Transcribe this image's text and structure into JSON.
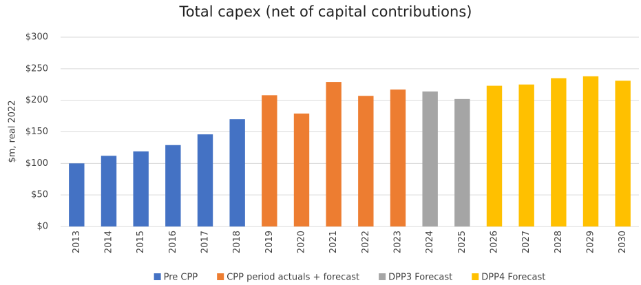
{
  "chart_data": {
    "type": "bar",
    "title": "Total capex (net of capital contributions)",
    "y_label": "$m, real 2022",
    "categories": [
      "2013",
      "2014",
      "2015",
      "2016",
      "2017",
      "2018",
      "2019",
      "2020",
      "2021",
      "2022",
      "2023",
      "2024",
      "2025",
      "2026",
      "2027",
      "2028",
      "2029",
      "2030"
    ],
    "series": [
      {
        "name": "Pre CPP",
        "color": "#4472c4",
        "values": [
          100,
          112,
          119,
          129,
          146,
          170,
          null,
          null,
          null,
          null,
          null,
          null,
          null,
          null,
          null,
          null,
          null,
          null
        ]
      },
      {
        "name": "CPP period actuals + forecast",
        "color": "#ed7d31",
        "values": [
          null,
          null,
          null,
          null,
          null,
          null,
          208,
          179,
          229,
          207,
          217,
          null,
          null,
          null,
          null,
          null,
          null,
          null
        ]
      },
      {
        "name": "DPP3 Forecast",
        "color": "#a5a5a5",
        "values": [
          null,
          null,
          null,
          null,
          null,
          null,
          null,
          null,
          null,
          null,
          null,
          214,
          202,
          null,
          null,
          null,
          null,
          null
        ]
      },
      {
        "name": "DPP4 Forecast",
        "color": "#ffc000",
        "values": [
          null,
          null,
          null,
          null,
          null,
          null,
          null,
          null,
          null,
          null,
          null,
          null,
          null,
          223,
          225,
          235,
          238,
          231
        ]
      }
    ],
    "ylim": [
      0,
      300
    ],
    "yticks": [
      {
        "value": 0,
        "label": "$0"
      },
      {
        "value": 50,
        "label": "$50"
      },
      {
        "value": 100,
        "label": "$100"
      },
      {
        "value": 150,
        "label": "$150"
      },
      {
        "value": 200,
        "label": "$200"
      },
      {
        "value": 250,
        "label": "$250"
      },
      {
        "value": 300,
        "label": "$300"
      }
    ],
    "grid": true,
    "legend": "bottom"
  }
}
